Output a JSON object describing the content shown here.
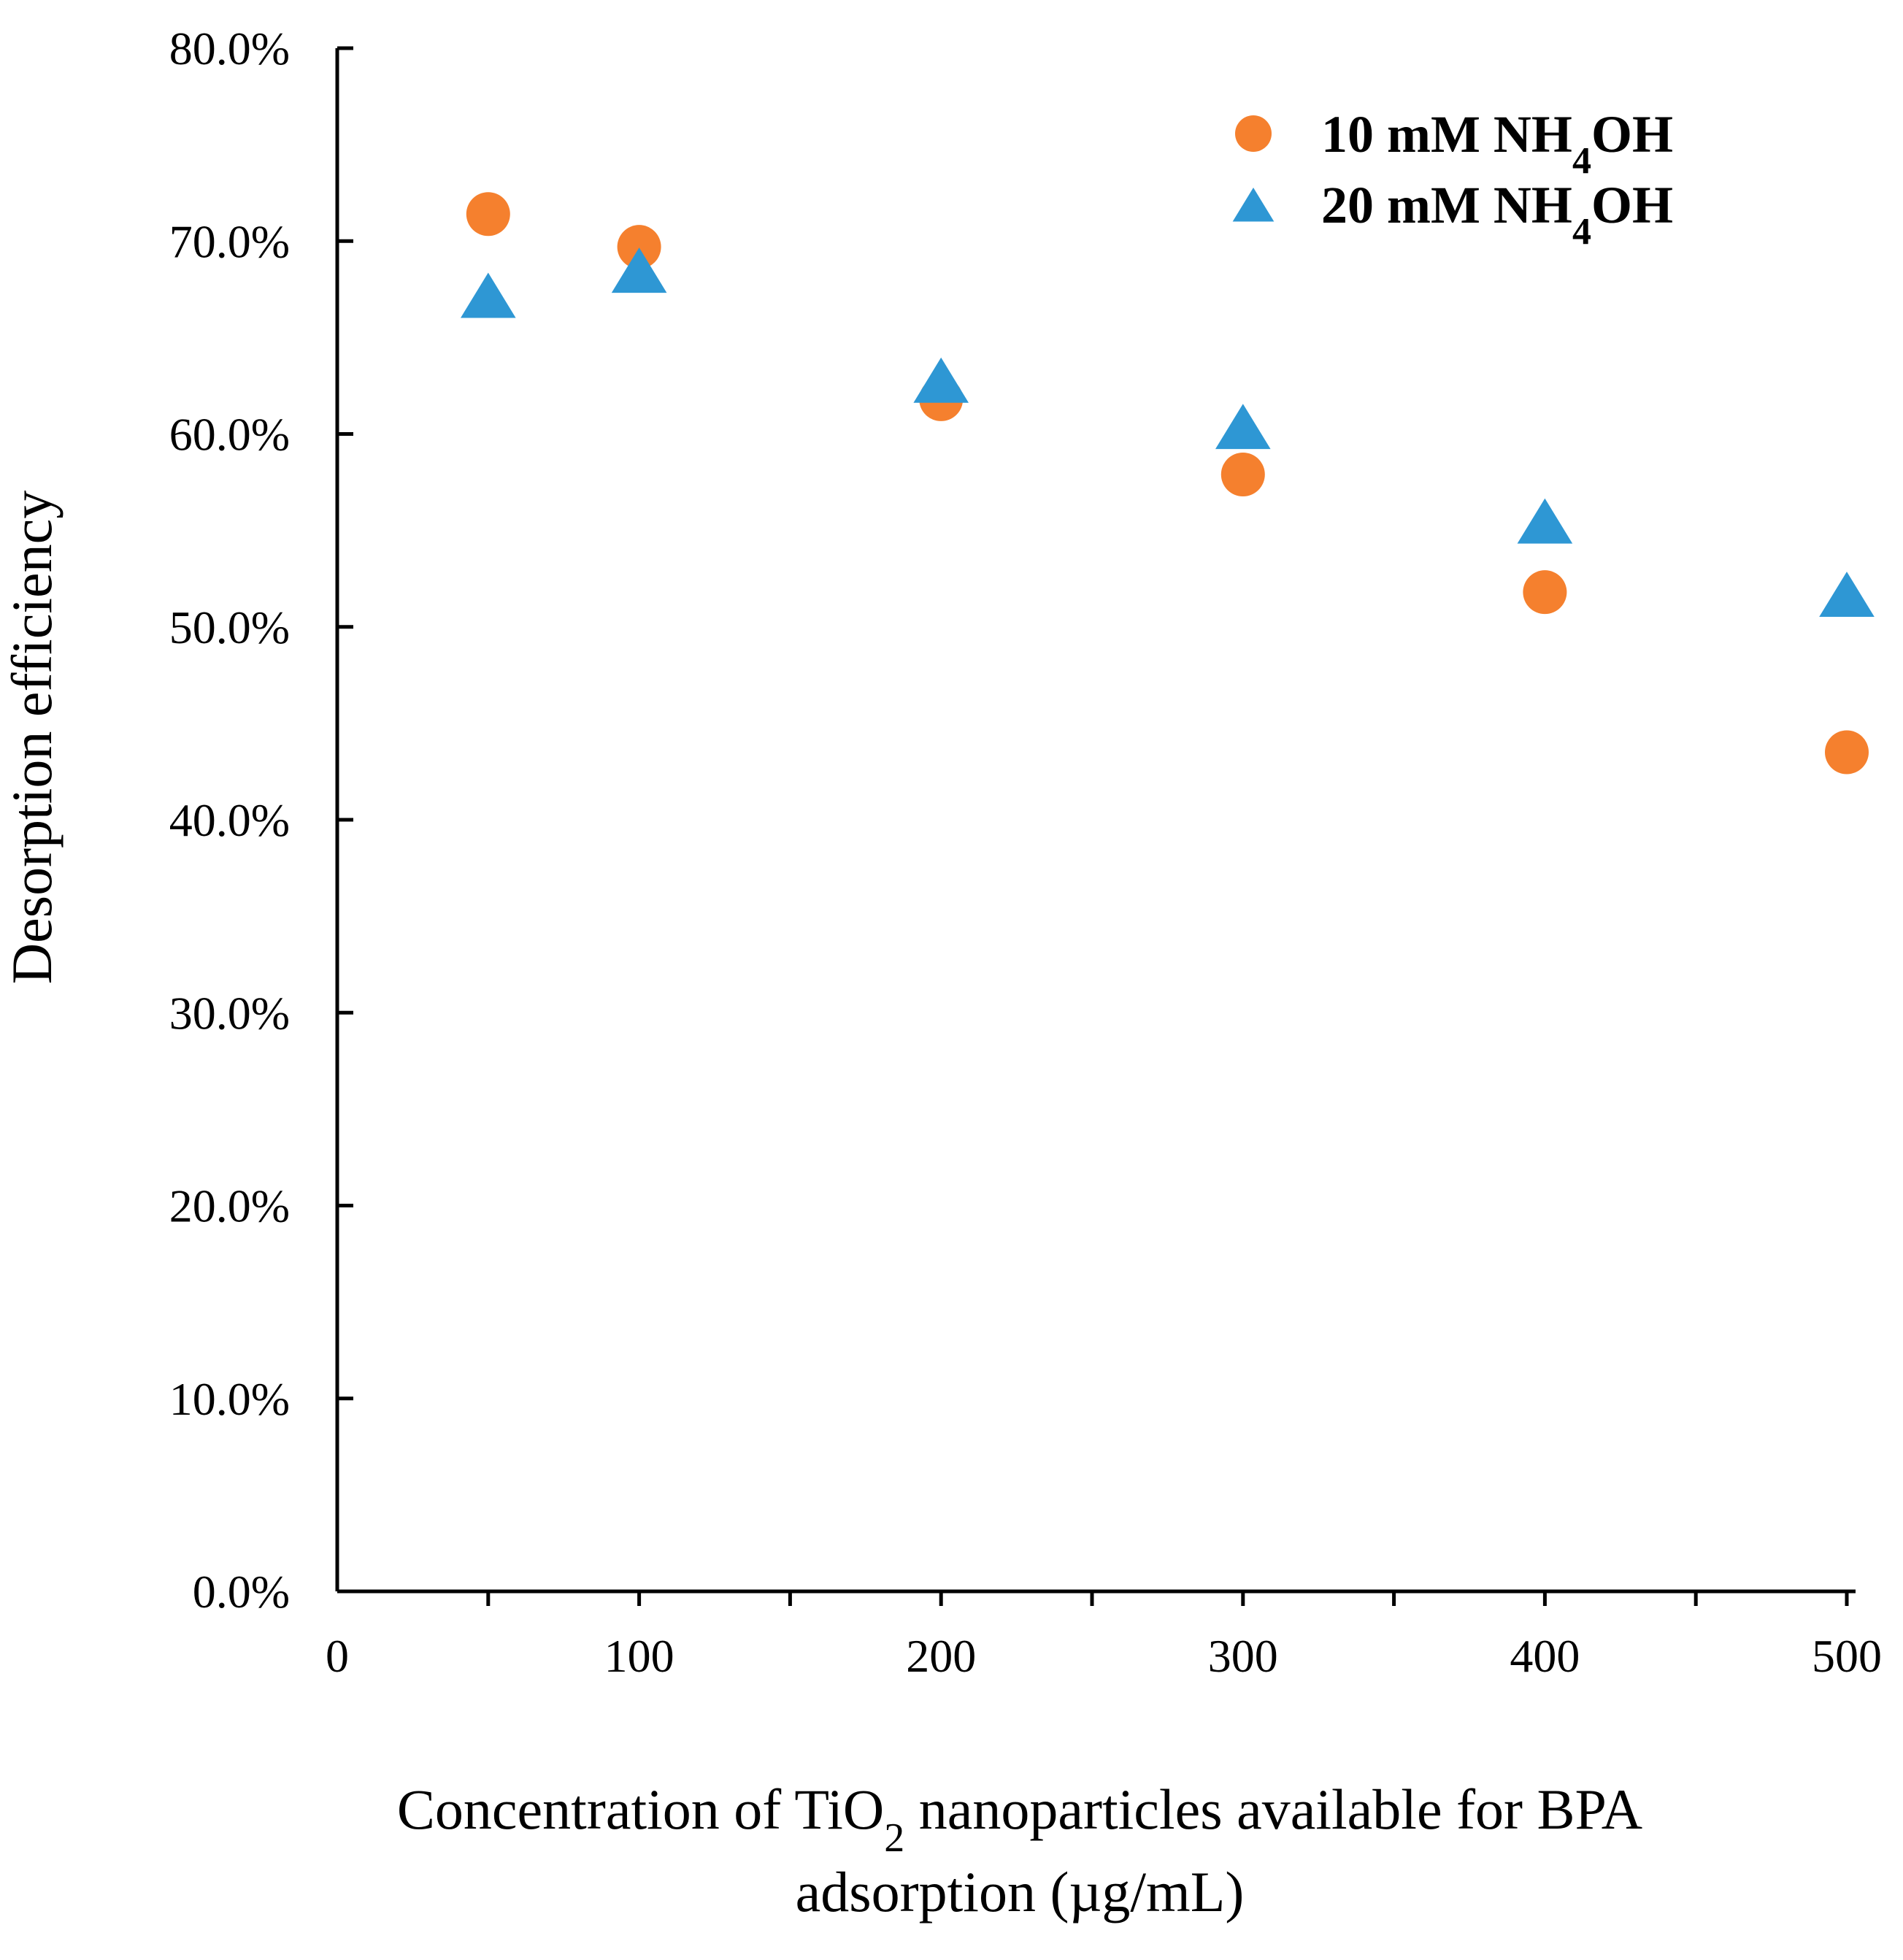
{
  "chart_data": {
    "type": "scatter",
    "title": "",
    "xlabel_parts": {
      "pre": "Concentration of TiO",
      "sub": "2",
      "post": " nanoparticles available for BPA",
      "line2": "adsorption (µg/mL)"
    },
    "ylabel": "Desorption efficiency",
    "xlim": [
      0,
      500
    ],
    "ylim": [
      0,
      80
    ],
    "x_ticks": [
      0,
      100,
      200,
      300,
      400,
      500
    ],
    "x_tick_labels": [
      "0",
      "100",
      "200",
      "300",
      "400",
      "500"
    ],
    "x_minor_ticks": [
      50,
      150,
      250,
      350,
      450
    ],
    "y_ticks": [
      0,
      10,
      20,
      30,
      40,
      50,
      60,
      70,
      80
    ],
    "y_tick_labels": [
      "0.0%",
      "10.0%",
      "20.0%",
      "30.0%",
      "40.0%",
      "50.0%",
      "60.0%",
      "70.0%",
      "80.0%"
    ],
    "grid": false,
    "legend_position": "top-right",
    "series": [
      {
        "name": "10 mM NH4OH",
        "label_parts": {
          "pre": "10 mM NH",
          "sub": "4",
          "post": "OH"
        },
        "marker": "circle",
        "color": "#F5802E",
        "x": [
          50,
          100,
          200,
          300,
          400,
          500
        ],
        "values": [
          71.4,
          69.7,
          61.8,
          57.9,
          51.8,
          43.5
        ]
      },
      {
        "name": "20 mM NH4OH",
        "label_parts": {
          "pre": "20 mM NH",
          "sub": "4",
          "post": "OH"
        },
        "marker": "triangle",
        "color": "#2E97D4",
        "x": [
          50,
          100,
          200,
          300,
          400,
          500
        ],
        "values": [
          67.0,
          68.3,
          62.6,
          60.2,
          55.3,
          51.5
        ]
      }
    ]
  }
}
